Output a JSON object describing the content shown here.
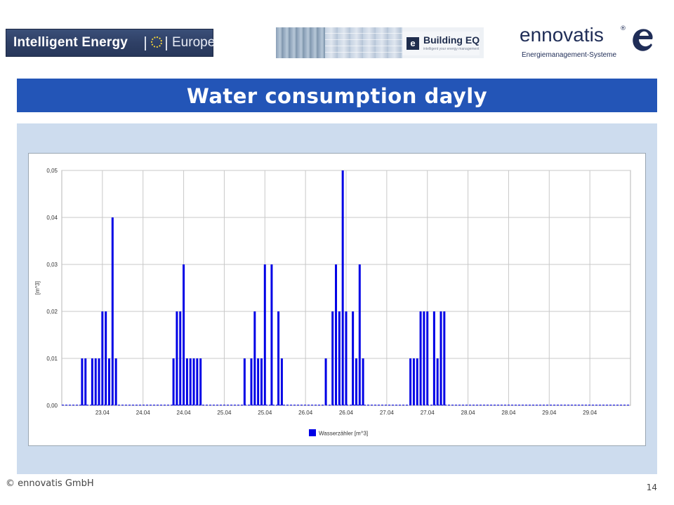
{
  "header": {
    "logo_left_part1": "Intelligent Energy",
    "logo_left_part2": "Europe",
    "logo_center_letter": "e",
    "logo_center_name": "Building EQ",
    "logo_center_tagline": "intelligent your energy management",
    "logo_right_name": "ennovatis",
    "logo_right_reg": "®",
    "logo_right_sub": "Energiemanagement-Systeme"
  },
  "title": "Water consumption dayly",
  "footer": {
    "copyright": "© ennovatis GmbH",
    "page_number": "14"
  },
  "colors": {
    "title_bar": "#2355b7",
    "panel": "#cddcee",
    "series": "#0000e6",
    "grid": "#c8c8c8"
  },
  "chart_data": {
    "type": "bar",
    "ylabel": "[m^3]",
    "ylim": [
      0,
      0.05
    ],
    "yticks": [
      "0,00",
      "0,01",
      "0,02",
      "0,03",
      "0,04",
      "0,05"
    ],
    "xlim": [
      0,
      168
    ],
    "xticks": [
      "23.04",
      "24.04",
      "24.04",
      "25.04",
      "25.04",
      "26.04",
      "26.04",
      "27.04",
      "27.04",
      "28.04",
      "28.04",
      "29.04",
      "29.04"
    ],
    "xtick_hours": [
      12,
      24,
      36,
      48,
      60,
      72,
      84,
      96,
      108,
      120,
      132,
      144,
      156
    ],
    "grid": true,
    "legend": "bottom-center",
    "series": [
      {
        "name": "Wasserzähler [m^3]",
        "points": [
          [
            6,
            0.01
          ],
          [
            7,
            0.01
          ],
          [
            9,
            0.01
          ],
          [
            10,
            0.01
          ],
          [
            11,
            0.01
          ],
          [
            12,
            0.02
          ],
          [
            13,
            0.02
          ],
          [
            14,
            0.01
          ],
          [
            15,
            0.04
          ],
          [
            16,
            0.01
          ],
          [
            33,
            0.01
          ],
          [
            34,
            0.02
          ],
          [
            35,
            0.02
          ],
          [
            36,
            0.03
          ],
          [
            37,
            0.01
          ],
          [
            38,
            0.01
          ],
          [
            39,
            0.01
          ],
          [
            40,
            0.01
          ],
          [
            41,
            0.01
          ],
          [
            54,
            0.01
          ],
          [
            56,
            0.01
          ],
          [
            57,
            0.02
          ],
          [
            58,
            0.01
          ],
          [
            59,
            0.01
          ],
          [
            60,
            0.03
          ],
          [
            62,
            0.03
          ],
          [
            64,
            0.02
          ],
          [
            65,
            0.01
          ],
          [
            78,
            0.01
          ],
          [
            80,
            0.02
          ],
          [
            81,
            0.03
          ],
          [
            82,
            0.02
          ],
          [
            83,
            0.05
          ],
          [
            84,
            0.02
          ],
          [
            86,
            0.02
          ],
          [
            87,
            0.01
          ],
          [
            88,
            0.03
          ],
          [
            89,
            0.01
          ],
          [
            103,
            0.01
          ],
          [
            104,
            0.01
          ],
          [
            105,
            0.01
          ],
          [
            106,
            0.02
          ],
          [
            107,
            0.02
          ],
          [
            108,
            0.02
          ],
          [
            110,
            0.02
          ],
          [
            111,
            0.01
          ],
          [
            112,
            0.02
          ],
          [
            113,
            0.02
          ]
        ]
      }
    ]
  }
}
